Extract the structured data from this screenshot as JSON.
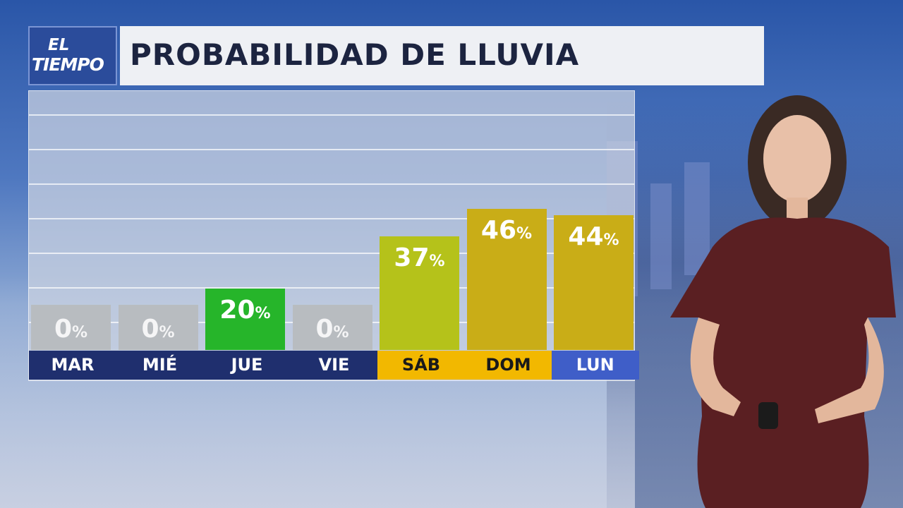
{
  "header": {
    "logo_line1": "EL",
    "logo_line2": "TIEMPO",
    "title": "PROBABILIDAD DE LLUVIA"
  },
  "colors": {
    "logo_bg": "#2b4c9b",
    "title_bg": "#eef0f4",
    "title_text": "#1c2440",
    "zero_bar": "#b8bcc0",
    "green_bar": "#26b52a",
    "yellow_green_bar": "#b5c21a",
    "mustard_bar": "#c9ad17",
    "day_bar_dark": "#1f2f6e",
    "day_bar_gold": "#f2b800",
    "day_bar_blue": "#3f5ec8"
  },
  "chart_data": {
    "type": "bar",
    "title": "PROBABILIDAD DE LLUVIA",
    "categories": [
      "MAR",
      "MIÉ",
      "JUE",
      "VIE",
      "SÁB",
      "DOM",
      "LUN"
    ],
    "values": [
      0,
      0,
      20,
      0,
      37,
      46,
      44
    ],
    "value_suffix": "%",
    "ylim": [
      0,
      70
    ],
    "grid": true,
    "bar_colors": [
      "#b8bcc0",
      "#b8bcc0",
      "#26b52a",
      "#b8bcc0",
      "#b5c21a",
      "#c9ad17",
      "#c9ad17"
    ],
    "day_colors": [
      "#1f2f6e",
      "#1f2f6e",
      "#1f2f6e",
      "#1f2f6e",
      "#f2b800",
      "#f2b800",
      "#3f5ec8"
    ],
    "day_highlight": [
      false,
      false,
      false,
      false,
      true,
      true,
      false
    ]
  }
}
